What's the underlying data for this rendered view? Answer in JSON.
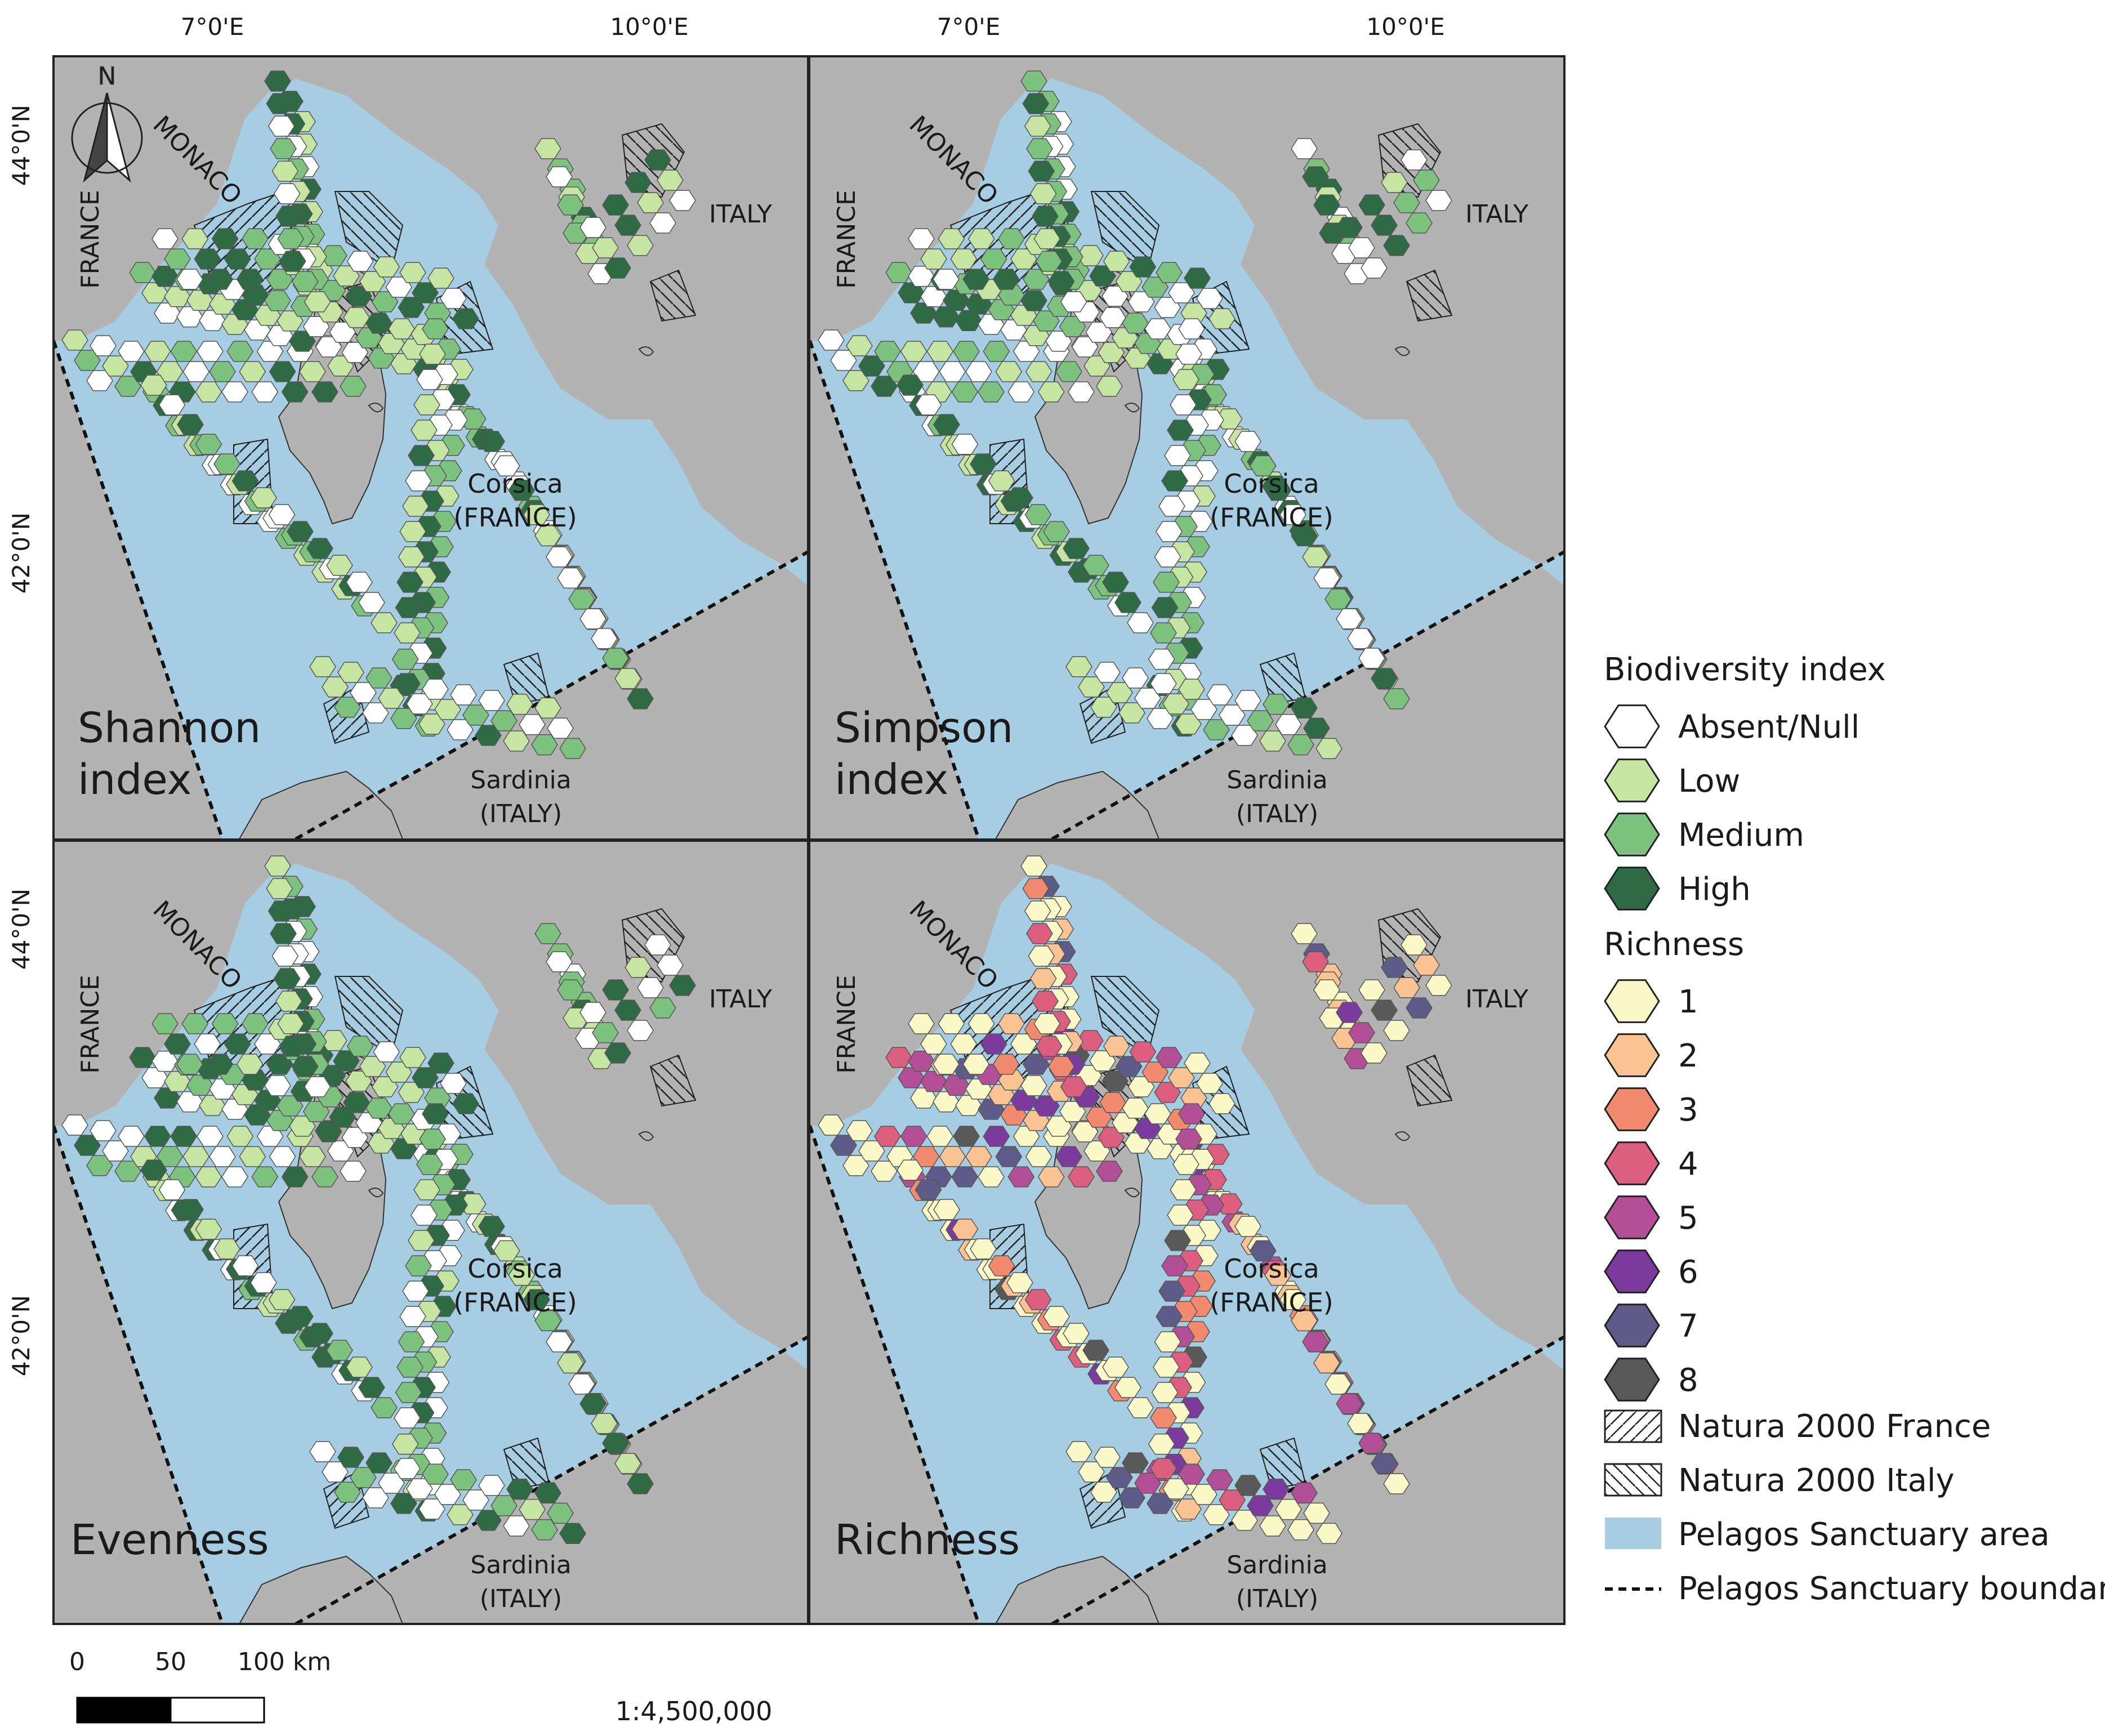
{
  "axes": {
    "top_lon": [
      "7°0'E",
      "10°0'E"
    ],
    "left_lat": [
      "44°0'N",
      "42°0'N"
    ]
  },
  "north_arrow": {
    "letter": "N"
  },
  "place_labels": {
    "monaco": "MONACO",
    "france": "FRANCE",
    "italy": "ITALY",
    "corsica_1": "Corsica",
    "corsica_2": "(FRANCE)",
    "sardinia_1": "Sardinia",
    "sardinia_2": "(ITALY)"
  },
  "panels": [
    {
      "title_1": "Shannon",
      "title_2": "index"
    },
    {
      "title_1": "Simpson",
      "title_2": "index"
    },
    {
      "title_1": "Evenness",
      "title_2": ""
    },
    {
      "title_1": "Richness",
      "title_2": ""
    }
  ],
  "legend": {
    "biodiversity_title": "Biodiversity index",
    "biodiversity": [
      {
        "label": "Absent/Null",
        "color": "#ffffff"
      },
      {
        "label": "Low",
        "color": "#c6e5a2"
      },
      {
        "label": "Medium",
        "color": "#7ec27f"
      },
      {
        "label": "High",
        "color": "#2e6b45"
      }
    ],
    "richness_title": "Richness",
    "richness": [
      {
        "label": "1",
        "color": "#fbf9c7"
      },
      {
        "label": "2",
        "color": "#f9c393"
      },
      {
        "label": "3",
        "color": "#f28a70"
      },
      {
        "label": "4",
        "color": "#dc5f80"
      },
      {
        "label": "5",
        "color": "#b34f96"
      },
      {
        "label": "6",
        "color": "#7a3b9c"
      },
      {
        "label": "7",
        "color": "#5f5b88"
      },
      {
        "label": "8",
        "color": "#595959"
      }
    ],
    "natura_france": "Natura 2000 France",
    "natura_italy": "Natura 2000 Italy",
    "sanctuary_area": "Pelagos Sanctuary area",
    "sanctuary_boundary": "Pelagos Sanctuary boundary"
  },
  "scale_bar": {
    "ticks": [
      "0",
      "50",
      "100 km"
    ],
    "ratio": "1:4,500,000"
  },
  "colors": {
    "sea": "#a6cde2",
    "land": "#b3b3b3",
    "frame": "#222222"
  }
}
